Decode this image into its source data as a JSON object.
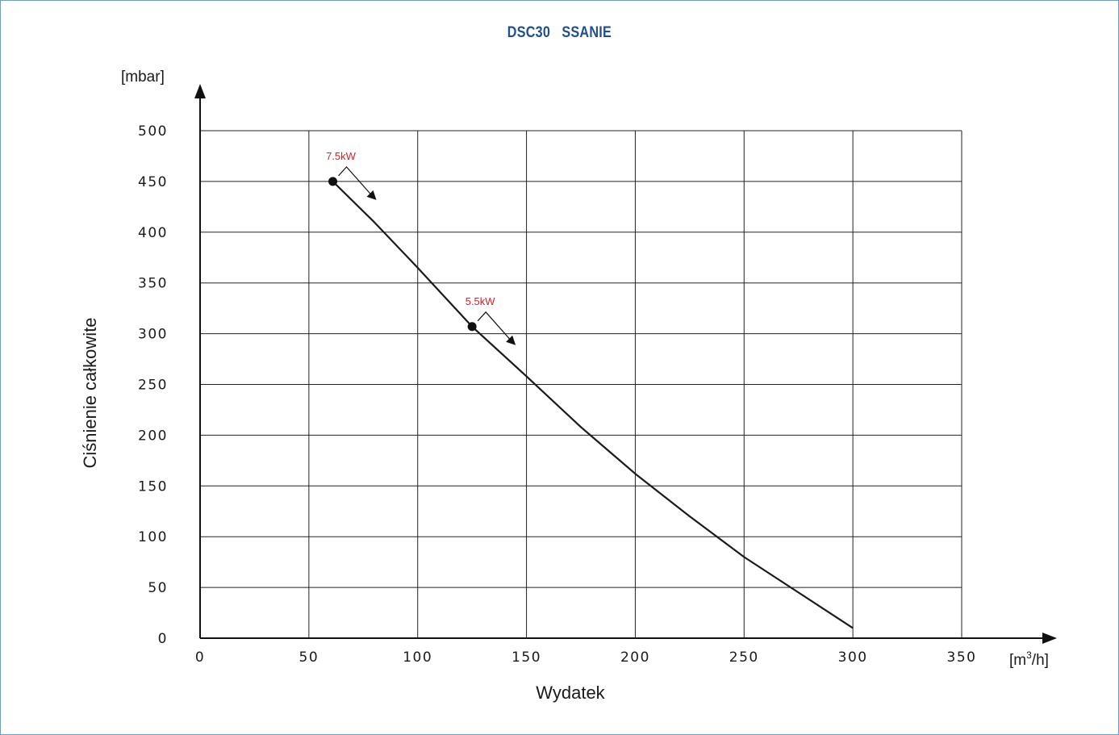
{
  "chart_data": {
    "type": "line",
    "title": "DSC30   SSANIE",
    "xlabel": "Wydatek",
    "ylabel": "Ciśnienie całkowite",
    "x_unit": "[m3/h]",
    "y_unit": "[mbar]",
    "xlim": [
      0,
      350
    ],
    "ylim": [
      0,
      500
    ],
    "x_ticks": [
      "0",
      "50",
      "100",
      "150",
      "200",
      "250",
      "300",
      "350"
    ],
    "y_ticks": [
      "0",
      "50",
      "100",
      "150",
      "200",
      "250",
      "300",
      "350",
      "400",
      "450",
      "500"
    ],
    "grid": true,
    "series": [
      {
        "x": [
          61,
          80,
          100,
          125,
          150,
          175,
          200,
          225,
          250,
          275,
          300
        ],
        "y": [
          450,
          410,
          365,
          307,
          258,
          208,
          162,
          120,
          80,
          45,
          10
        ]
      }
    ],
    "annotations": [
      {
        "label": "7.5kW",
        "x": 61,
        "y": 450
      },
      {
        "label": "5.5kW",
        "x": 125,
        "y": 307
      }
    ],
    "colors": {
      "line": "#1a1a1a",
      "annotation": "#d8232a",
      "title": "#1f4f8f",
      "frame": "#6f9cc4"
    }
  }
}
